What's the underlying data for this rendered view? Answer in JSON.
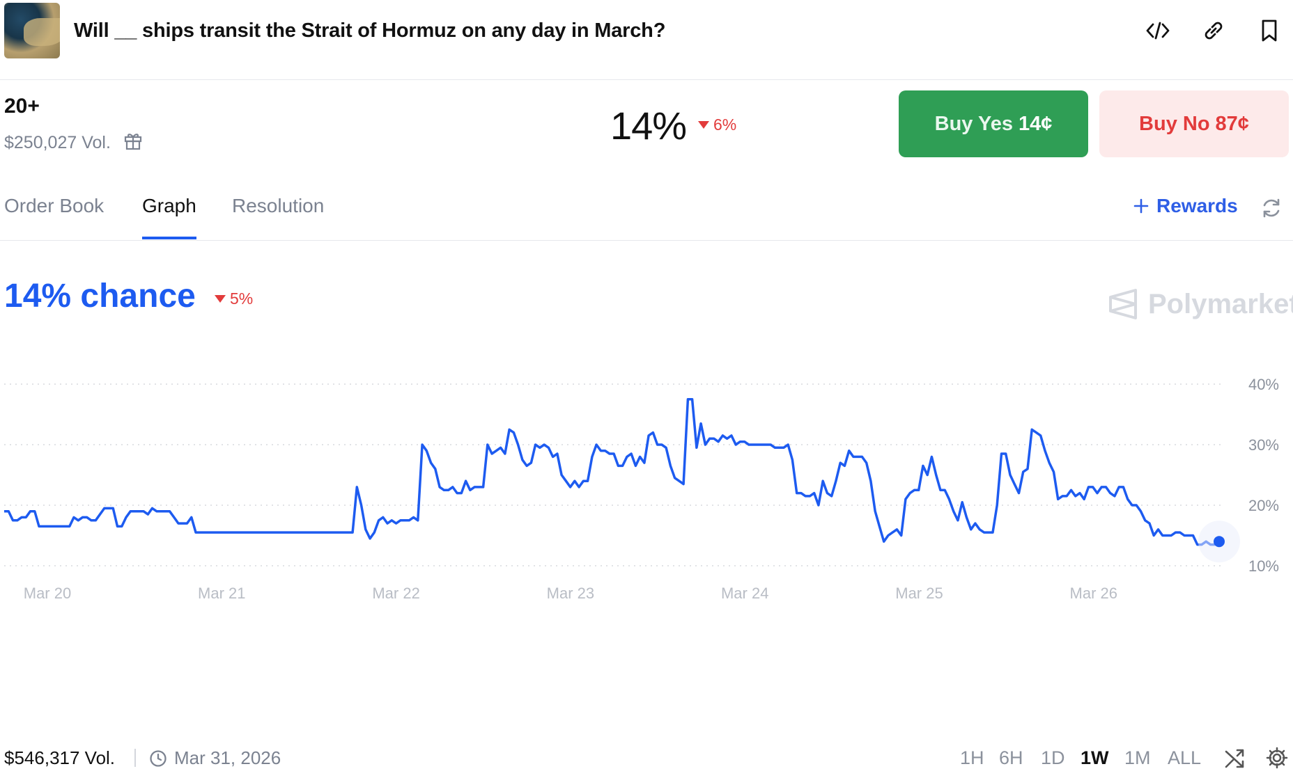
{
  "header": {
    "title": "Will __ ships transit the Strait of Hormuz on any day in March?",
    "icons": [
      "code-icon",
      "link-icon",
      "bookmark-icon"
    ]
  },
  "summary": {
    "outcome": "20+",
    "volume": "$250,027 Vol.",
    "probability": "14%",
    "change": "6%"
  },
  "actions": {
    "buy_yes_label": "Buy Yes",
    "buy_yes_price": "14¢",
    "buy_no_label": "Buy No",
    "buy_no_price": "87¢"
  },
  "tabs": [
    {
      "label": "Order Book"
    },
    {
      "label": "Graph",
      "active": true
    },
    {
      "label": "Resolution"
    }
  ],
  "rewards_label": "Rewards",
  "graph": {
    "chance": "14% chance",
    "change": "5%",
    "brand": "Polymarket"
  },
  "chart_data": {
    "type": "line",
    "x_labels": [
      "Mar 20",
      "Mar 21",
      "Mar 22",
      "Mar 23",
      "Mar 24",
      "Mar 25",
      "Mar 26"
    ],
    "y_ticks": [
      "10%",
      "20%",
      "30%",
      "40%"
    ],
    "ylim": [
      10,
      40
    ],
    "grid": true,
    "color": "#1d5bf0",
    "series": [
      {
        "values": [
          19,
          19,
          17.5,
          17.5,
          18,
          18,
          19,
          19,
          16.5,
          16.5,
          16.5,
          16.5,
          16.5,
          16.5,
          16.5,
          16.5,
          18,
          17.5,
          18,
          18,
          17.5,
          17.5,
          18.5,
          19.5,
          19.5,
          19.5,
          16.5,
          16.5,
          18,
          19,
          19,
          19,
          19,
          18.5,
          19.5,
          19,
          19,
          19,
          19,
          18,
          17,
          17,
          17,
          18,
          15.5,
          15.5,
          15.5,
          15.5,
          15.5,
          15.5,
          15.5,
          15.5,
          15.5,
          15.5,
          15.5,
          15.5,
          15.5,
          15.5,
          15.5,
          15.5,
          15.5,
          15.5,
          15.5,
          15.5,
          15.5,
          15.5,
          15.5,
          15.5,
          15.5,
          15.5,
          15.5,
          15.5,
          15.5,
          15.5,
          15.5,
          15.5,
          15.5,
          15.5,
          15.5,
          15.5,
          15.5,
          23,
          20,
          16,
          14.5,
          15.5,
          17.5,
          18,
          17,
          17.5,
          17,
          17.5,
          17.5,
          17.5,
          18,
          17.5,
          30,
          29,
          27,
          26,
          23,
          22.5,
          22.5,
          23,
          22,
          22,
          24,
          22.5,
          23,
          23,
          23,
          30,
          28.5,
          29,
          29.5,
          28.5,
          32.5,
          32,
          30,
          27.5,
          26.5,
          27,
          30,
          29.5,
          30,
          29.5,
          28,
          28.5,
          25,
          24,
          23,
          24,
          23,
          24,
          24,
          28,
          30,
          29,
          29,
          28.5,
          28.5,
          26.5,
          26.5,
          28,
          28.5,
          26.5,
          28,
          27,
          31.5,
          32,
          30,
          30,
          29.5,
          26.5,
          24.5,
          24,
          23.5,
          37.5,
          37.5,
          29.5,
          33.5,
          30,
          31,
          31,
          30.5,
          31.5,
          31,
          31.5,
          30,
          30.5,
          30.5,
          30,
          30,
          30,
          30,
          30,
          30,
          29.5,
          29.5,
          29.5,
          30,
          27.5,
          22,
          22,
          21.5,
          21.5,
          22,
          20,
          24,
          22,
          21.5,
          24,
          27,
          26.5,
          29,
          28,
          28,
          28,
          27,
          24,
          19,
          16.5,
          14,
          15,
          15.5,
          16,
          15,
          21,
          22,
          22.5,
          22.5,
          26.5,
          25,
          28,
          25,
          22.5,
          22.5,
          21,
          19,
          17.5,
          20.5,
          18,
          16,
          17,
          16,
          15.5,
          15.5,
          15.5,
          20,
          28.5,
          28.5,
          25,
          23.5,
          22,
          25.5,
          26,
          32.5,
          32,
          31.5,
          29,
          27,
          25.5,
          21,
          21.5,
          21.5,
          22.5,
          21.5,
          22,
          21,
          23,
          23,
          22,
          23,
          23,
          22,
          21.5,
          23,
          23,
          21,
          20,
          20,
          19,
          17.5,
          17,
          15,
          16,
          15,
          15,
          15,
          15.5,
          15.5,
          15,
          15,
          15,
          13.5,
          13.5,
          14,
          13.5,
          13.5,
          14
        ]
      }
    ]
  },
  "footer": {
    "volume": "$546,317 Vol.",
    "end_date": "Mar 31, 2026",
    "ranges": [
      {
        "label": "1H"
      },
      {
        "label": "6H"
      },
      {
        "label": "1D"
      },
      {
        "label": "1W",
        "active": true
      },
      {
        "label": "1M"
      },
      {
        "label": "ALL"
      }
    ]
  }
}
